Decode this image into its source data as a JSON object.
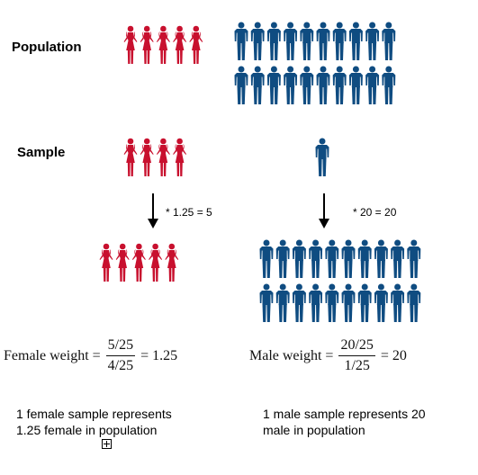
{
  "labels": {
    "population": "Population",
    "sample": "Sample"
  },
  "colors": {
    "female": "#c8102e",
    "male": "#0f4c81"
  },
  "icons": {
    "female": "female-figure-icon",
    "male": "male-figure-icon"
  },
  "groups": {
    "population_female": {
      "count": 5,
      "rows": 1
    },
    "population_male": {
      "count": 20,
      "rows": 2
    },
    "sample_female": {
      "count": 4,
      "rows": 1
    },
    "sample_male": {
      "count": 1,
      "rows": 1
    },
    "weighted_female": {
      "count": 5,
      "rows": 1
    },
    "weighted_male": {
      "count": 20,
      "rows": 2
    }
  },
  "multipliers": {
    "female": "* 1.25 = 5",
    "male": "* 20 = 20"
  },
  "formulas": {
    "female": {
      "label": "Female weight =",
      "numerator": "5/25",
      "denominator": "4/25",
      "result": "= 1.25"
    },
    "male": {
      "label": "Male weight =",
      "numerator": "20/25",
      "denominator": "1/25",
      "result": "= 20"
    }
  },
  "captions": {
    "female": [
      "1 female sample represents",
      "1.25 female in population"
    ],
    "male": [
      "1 male sample represents 20",
      "male in population"
    ]
  }
}
